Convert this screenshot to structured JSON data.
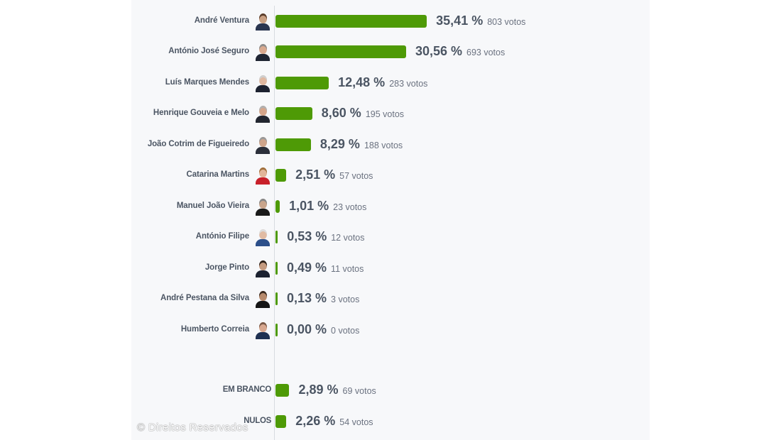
{
  "chart_data": {
    "type": "bar",
    "orientation": "horizontal",
    "title": "",
    "xlabel": "",
    "ylabel": "",
    "grid": false,
    "bar_color": "#4e9a06",
    "unit": "%",
    "categories": [
      "André Ventura",
      "António José Seguro",
      "Luís Marques Mendes",
      "Henrique Gouveia e Melo",
      "João Cotrim de Figueiredo",
      "Catarina Martins",
      "Manuel João Vieira",
      "António Filipe",
      "Jorge Pinto",
      "André Pestana da Silva",
      "Humberto Correia",
      "EM BRANCO",
      "NULOS"
    ],
    "series": [
      {
        "name": "Percentagem",
        "values": [
          35.41,
          30.56,
          12.48,
          8.6,
          8.29,
          2.51,
          1.01,
          0.53,
          0.49,
          0.13,
          0.0,
          2.89,
          2.26
        ]
      },
      {
        "name": "Votos",
        "values": [
          803,
          693,
          283,
          195,
          188,
          57,
          23,
          12,
          11,
          3,
          0,
          69,
          54
        ]
      }
    ]
  },
  "candidates": [
    {
      "name": "André Ventura",
      "pct": "35,41 %",
      "votes": "803 votos",
      "value": 35.41,
      "skin": "#c9a083",
      "hair": "#5a3d2b",
      "suit": "#2a3550"
    },
    {
      "name": "António José Seguro",
      "pct": "30,56 %",
      "votes": "693 votos",
      "value": 30.56,
      "skin": "#d9a98f",
      "hair": "#8d8d8d",
      "suit": "#1f2533"
    },
    {
      "name": "Luís Marques Mendes",
      "pct": "12,48 %",
      "votes": "283 votos",
      "value": 12.48,
      "skin": "#e0b8a0",
      "hair": "#cfcfcf",
      "suit": "#1d2230"
    },
    {
      "name": "Henrique Gouveia e Melo",
      "pct": "8,60 %",
      "votes": "195 votos",
      "value": 8.6,
      "skin": "#d5a58a",
      "hair": "#b0b0b0",
      "suit": "#222630"
    },
    {
      "name": "João Cotrim de Figueiredo",
      "pct": "8,29 %",
      "votes": "188 votos",
      "value": 8.29,
      "skin": "#cfa58c",
      "hair": "#9a9a9a",
      "suit": "#2b2f3a"
    },
    {
      "name": "Catarina Martins",
      "pct": "2,51 %",
      "votes": "57 votos",
      "value": 2.51,
      "skin": "#e2b69a",
      "hair": "#a0703d",
      "suit": "#c8202a"
    },
    {
      "name": "Manuel João Vieira",
      "pct": "1,01 %",
      "votes": "23 votos",
      "value": 1.01,
      "skin": "#c9a58c",
      "hair": "#888888",
      "suit": "#1a1a1a"
    },
    {
      "name": "António Filipe",
      "pct": "0,53 %",
      "votes": "12 votos",
      "value": 0.53,
      "skin": "#e1bba3",
      "hair": "#dddddd",
      "suit": "#2c4f8a"
    },
    {
      "name": "Jorge Pinto",
      "pct": "0,49 %",
      "votes": "11 votos",
      "value": 0.49,
      "skin": "#c49a7f",
      "hair": "#2b1f18",
      "suit": "#1c2230"
    },
    {
      "name": "André Pestana da Silva",
      "pct": "0,13 %",
      "votes": "3 votos",
      "value": 0.13,
      "skin": "#b78a6c",
      "hair": "#3a2a20",
      "suit": "#151515"
    },
    {
      "name": "Humberto Correia",
      "pct": "0,00 %",
      "votes": "0 votos",
      "value": 0.0,
      "skin": "#d8a890",
      "hair": "#7a5a48",
      "suit": "#1f3152"
    }
  ],
  "others": [
    {
      "name": "EM BRANCO",
      "pct": "2,89 %",
      "votes": "69 votos",
      "value": 2.89
    },
    {
      "name": "NULOS",
      "pct": "2,26 %",
      "votes": "54 votos",
      "value": 2.26
    }
  ],
  "watermark": "© Direitos Reservados"
}
